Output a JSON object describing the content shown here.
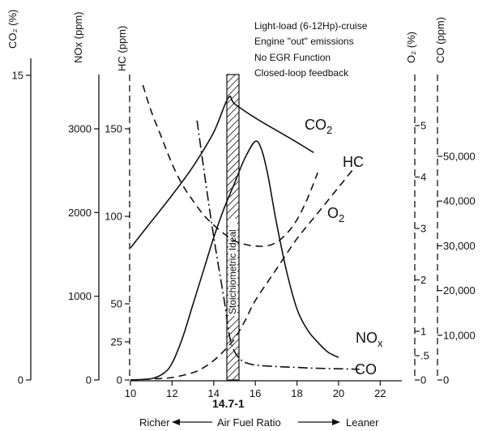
{
  "chart_data": {
    "type": "line",
    "title": "",
    "xlabel": "Air Fuel Ratio",
    "xlim": [
      10,
      23
    ],
    "x_ticks": [
      "10",
      "12",
      "14",
      "16",
      "18",
      "20",
      "22"
    ],
    "stoich_marker": "14.7-1",
    "stoich_band_label": "Stoichiometric Ideal",
    "direction_labels": {
      "left": "Richer",
      "right": "Leaner"
    },
    "annotations": [
      "Light-load (6-12Hp)-cruise",
      "Engine \"out\" emissions",
      "No EGR Function",
      "Closed-loop feedback"
    ],
    "axes": [
      {
        "id": "co2",
        "title": "CO₂ (%)",
        "ticks": [
          {
            "v": 0,
            "label": "0"
          },
          {
            "v": 15,
            "label": "15"
          }
        ],
        "ylim": [
          0,
          15
        ]
      },
      {
        "id": "nox",
        "title": "NOx (ppm)",
        "ticks": [
          {
            "v": 0,
            "label": "0"
          },
          {
            "v": 1000,
            "label": "1000"
          },
          {
            "v": 2000,
            "label": "2000"
          },
          {
            "v": 3000,
            "label": "3000"
          }
        ],
        "ylim": [
          0,
          3500
        ]
      },
      {
        "id": "hc",
        "title": "HC (ppm)",
        "ticks": [
          {
            "v": 0,
            "label": "0"
          },
          {
            "v": 25,
            "label": "25"
          },
          {
            "v": 50,
            "label": "50"
          },
          {
            "v": 100,
            "label": "100"
          },
          {
            "v": 150,
            "label": "150"
          }
        ],
        "ylim": [
          0,
          175
        ]
      },
      {
        "id": "o2",
        "title": "O₂ (%)",
        "ticks": [
          {
            "v": 0,
            "label": "0"
          },
          {
            "v": 0.5,
            "label": ".5"
          },
          {
            "v": 1,
            "label": "1"
          },
          {
            "v": 2,
            "label": "2"
          },
          {
            "v": 3,
            "label": "3"
          },
          {
            "v": 4,
            "label": "4"
          },
          {
            "v": 5,
            "label": "5"
          }
        ],
        "ylim": [
          0,
          5.8
        ]
      },
      {
        "id": "co",
        "title": "CO (ppm)",
        "ticks": [
          {
            "v": 0,
            "label": "0"
          },
          {
            "v": 10000,
            "label": "10,000"
          },
          {
            "v": 20000,
            "label": "20,000"
          },
          {
            "v": 30000,
            "label": "30,000"
          },
          {
            "v": 40000,
            "label": "40,000"
          },
          {
            "v": 50000,
            "label": "50,000"
          }
        ],
        "ylim": [
          0,
          58000
        ]
      }
    ],
    "series": [
      {
        "name": "CO₂",
        "axis": "co2",
        "style": "solid",
        "x": [
          10,
          11,
          12,
          13,
          14,
          14.7,
          15,
          16,
          17,
          18,
          18.8
        ],
        "y": [
          6.5,
          7.8,
          9.1,
          10.5,
          12.2,
          13.9,
          13.6,
          12.9,
          12.3,
          11.7,
          11.2
        ]
      },
      {
        "name": "NOx",
        "axis": "nox",
        "style": "solid",
        "x": [
          10,
          11,
          11.6,
          12,
          12.5,
          13,
          13.5,
          14,
          14.5,
          15,
          15.5,
          16,
          16.3,
          16.6,
          17,
          17.5,
          18,
          18.5,
          19,
          19.5,
          20
        ],
        "y": [
          0,
          15,
          80,
          200,
          500,
          900,
          1300,
          1700,
          2050,
          2350,
          2650,
          2850,
          2750,
          2450,
          1900,
          1300,
          850,
          600,
          450,
          330,
          270
        ]
      },
      {
        "name": "HC",
        "axis": "hc",
        "style": "dashed",
        "x": [
          10.6,
          11,
          11.5,
          12,
          12.5,
          13,
          13.5,
          14,
          14.5,
          15,
          15.5,
          16,
          16.5,
          17,
          17.5,
          18,
          18.5,
          19
        ],
        "y": [
          175,
          160,
          145,
          130,
          118,
          109,
          101,
          95,
          90,
          86,
          84,
          83,
          83,
          85,
          90,
          98,
          110,
          125
        ]
      },
      {
        "name": "O₂",
        "axis": "o2",
        "style": "dashed",
        "x": [
          10,
          11,
          12,
          13,
          13.5,
          14,
          14.5,
          15,
          15.5,
          16,
          17,
          18,
          19,
          20,
          20.8
        ],
        "y": [
          0,
          0.02,
          0.05,
          0.15,
          0.25,
          0.4,
          0.6,
          0.85,
          1.2,
          1.6,
          2.2,
          2.8,
          3.3,
          3.8,
          4.2
        ]
      },
      {
        "name": "CO",
        "axis": "co",
        "style": "dashdot",
        "x": [
          13.2,
          13.5,
          14,
          14.5,
          14.8,
          15.2,
          15.8,
          17,
          18,
          19,
          20,
          21
        ],
        "y": [
          58000,
          48000,
          32000,
          18000,
          9000,
          5000,
          3500,
          3000,
          2800,
          2600,
          2500,
          2400
        ]
      }
    ]
  }
}
